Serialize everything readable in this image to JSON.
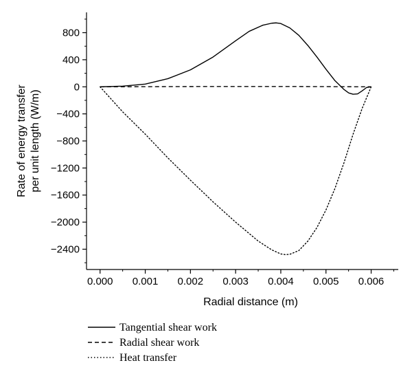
{
  "chart_data": {
    "type": "line",
    "title": "",
    "xlabel": "Radial distance (m)",
    "ylabel_lines": [
      "Rate of energy transfer",
      "per unit length (W/m)"
    ],
    "xlim": [
      -0.0003,
      0.0066
    ],
    "ylim": [
      -2700,
      1100
    ],
    "x_ticks": [
      0.0,
      0.001,
      0.002,
      0.003,
      0.004,
      0.005,
      0.006
    ],
    "x_tick_labels": [
      "0.000",
      "0.001",
      "0.002",
      "0.003",
      "0.004",
      "0.005",
      "0.006"
    ],
    "y_ticks": [
      800,
      400,
      0,
      -400,
      -800,
      -1200,
      -1600,
      -2000,
      -2400
    ],
    "y_tick_labels": [
      "800",
      "400",
      "0",
      "−400",
      "−800",
      "−1200",
      "−1600",
      "−2000",
      "−2400"
    ],
    "grid": false,
    "legend_position": "bottom",
    "series": [
      {
        "name": "Tangential shear work",
        "dash": "solid",
        "x": [
          0.0,
          0.0005,
          0.001,
          0.0015,
          0.002,
          0.0025,
          0.003,
          0.0033,
          0.0036,
          0.0038,
          0.0039,
          0.004,
          0.0042,
          0.0044,
          0.0046,
          0.0048,
          0.005,
          0.0052,
          0.0054,
          0.0055,
          0.0056,
          0.0057,
          0.0058,
          0.0059,
          0.006
        ],
        "values": [
          0,
          10,
          40,
          120,
          250,
          440,
          680,
          820,
          910,
          940,
          945,
          935,
          870,
          760,
          610,
          440,
          260,
          90,
          -40,
          -90,
          -110,
          -105,
          -60,
          -10,
          0
        ]
      },
      {
        "name": "Radial shear work",
        "dash": "dashed",
        "x": [
          0.0,
          0.001,
          0.002,
          0.003,
          0.004,
          0.005,
          0.006
        ],
        "values": [
          0,
          2,
          4,
          5,
          5,
          3,
          0
        ]
      },
      {
        "name": "Heat transfer",
        "dash": "dotted",
        "x": [
          0.0,
          0.0005,
          0.001,
          0.0015,
          0.002,
          0.0025,
          0.003,
          0.0035,
          0.0038,
          0.004,
          0.0041,
          0.0042,
          0.0044,
          0.0046,
          0.0048,
          0.005,
          0.0052,
          0.0054,
          0.0056,
          0.0058,
          0.006
        ],
        "values": [
          0,
          -370,
          -700,
          -1050,
          -1380,
          -1700,
          -2000,
          -2280,
          -2410,
          -2470,
          -2480,
          -2475,
          -2420,
          -2280,
          -2080,
          -1820,
          -1500,
          -1120,
          -700,
          -320,
          0
        ]
      }
    ]
  }
}
